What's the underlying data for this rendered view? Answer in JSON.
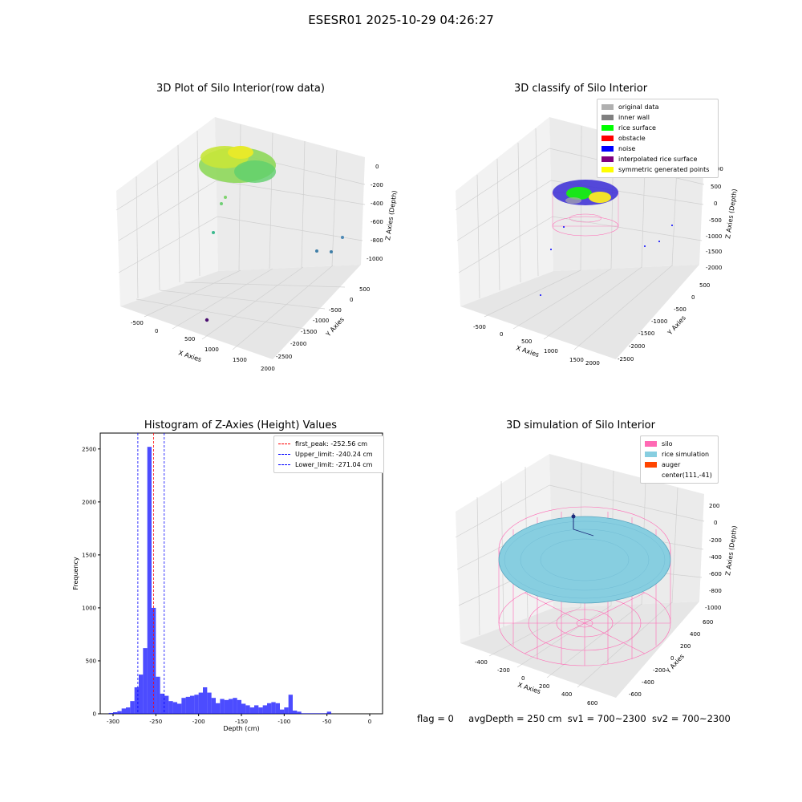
{
  "suptitle": "ESESR01 2025-10-29 04:26:27",
  "panels": {
    "raw": {
      "title": "3D Plot of Silo Interior(row data)",
      "xlabel": "X Axies",
      "ylabel": "Y Axies",
      "zlabel": "Z Axies (Depth)",
      "xticks": [
        "-500",
        "0",
        "500",
        "1000",
        "1500",
        "2000"
      ],
      "yticks": [
        "500",
        "0",
        "-500",
        "-1000",
        "-1500",
        "-2000",
        "-2500"
      ],
      "zticks": [
        "0",
        "-200",
        "-400",
        "-600",
        "-800",
        "-1000"
      ]
    },
    "classify": {
      "title": "3D classify of Silo Interior",
      "xlabel": "X Axies",
      "ylabel": "Y Axies",
      "zlabel": "Z Axies (Depth)",
      "xticks": [
        "-500",
        "0",
        "500",
        "1000",
        "1500",
        "2000"
      ],
      "yticks": [
        "500",
        "0",
        "-500",
        "-1000",
        "-1500",
        "-2000",
        "-2500"
      ],
      "zticks": [
        "1000",
        "500",
        "0",
        "-500",
        "-1000",
        "-1500",
        "-2000"
      ],
      "legend": [
        {
          "label": "original data",
          "color": "#b0b0b0"
        },
        {
          "label": "inner wall",
          "color": "#808080"
        },
        {
          "label": "rice surface",
          "color": "#00ff00"
        },
        {
          "label": "obstacle",
          "color": "#ff0000"
        },
        {
          "label": "noise",
          "color": "#0000ff"
        },
        {
          "label": "interpolated rice surface",
          "color": "#800080"
        },
        {
          "label": "symmetric generated points",
          "color": "#ffff00"
        }
      ]
    },
    "histogram": {
      "title": "Histogram of Z-Axies (Height) Values",
      "legend": [
        {
          "label": "first_peak: -252.56 cm",
          "color": "#ff0000"
        },
        {
          "label": "Upper_limit: -240.24 cm",
          "color": "#0000ff"
        },
        {
          "label": "Lower_limit: -271.04 cm",
          "color": "#0000ff"
        }
      ]
    },
    "simulation": {
      "title": "3D simulation of Silo Interior",
      "xlabel": "X Axies",
      "ylabel": "Y Axies",
      "zlabel": "Z Axies (Depth)",
      "xticks": [
        "-400",
        "-200",
        "0",
        "200",
        "400",
        "600"
      ],
      "yticks": [
        "600",
        "400",
        "200",
        "0",
        "-200",
        "-400",
        "-600"
      ],
      "zticks": [
        "200",
        "0",
        "-200",
        "-400",
        "-600",
        "-800",
        "-1000"
      ],
      "legend": [
        {
          "label": "silo",
          "color": "#ff69b4"
        },
        {
          "label": "rice simulation",
          "color": "#87cee0"
        },
        {
          "label": "auger",
          "color": "#ff4500"
        },
        {
          "label": "center(111,-41)",
          "color": ""
        }
      ]
    }
  },
  "status": {
    "flag": "flag = 0",
    "avg_depth": "avgDepth = 250 cm",
    "sv1": "sv1 = 700~2300",
    "sv2": "sv2 = 700~2300"
  },
  "chart_data": [
    {
      "type": "scatter",
      "title": "3D Plot of Silo Interior(row data)",
      "projection": "3d",
      "xlabel": "X Axies",
      "ylabel": "Y Axies",
      "zlabel": "Z Axies (Depth)",
      "xlim": [
        -700,
        2000
      ],
      "ylim": [
        -2700,
        700
      ],
      "zlim": [
        -1100,
        50
      ]
    },
    {
      "type": "scatter",
      "title": "3D classify of Silo Interior",
      "projection": "3d",
      "xlabel": "X Axies",
      "ylabel": "Y Axies",
      "zlabel": "Z Axies (Depth)",
      "xlim": [
        -700,
        2000
      ],
      "ylim": [
        -2700,
        700
      ],
      "zlim": [
        -2100,
        1100
      ],
      "legend_position": "top-right"
    },
    {
      "type": "bar",
      "title": "Histogram of Z-Axies (Height) Values",
      "xlabel": "Depth (cm)",
      "ylabel": "Frequency",
      "xlim": [
        -315,
        15
      ],
      "ylim": [
        0,
        2650
      ],
      "xticks": [
        -300,
        -250,
        -200,
        -150,
        -100,
        -50,
        0
      ],
      "yticks": [
        0,
        500,
        1000,
        1500,
        2000,
        2500
      ],
      "bin_width": 5,
      "bins": [
        [
          -305,
          8
        ],
        [
          -300,
          15
        ],
        [
          -295,
          25
        ],
        [
          -290,
          50
        ],
        [
          -285,
          60
        ],
        [
          -280,
          120
        ],
        [
          -275,
          250
        ],
        [
          -270,
          370
        ],
        [
          -265,
          620
        ],
        [
          -260,
          2520
        ],
        [
          -255,
          1000
        ],
        [
          -250,
          350
        ],
        [
          -245,
          190
        ],
        [
          -240,
          170
        ],
        [
          -235,
          120
        ],
        [
          -230,
          110
        ],
        [
          -225,
          95
        ],
        [
          -220,
          150
        ],
        [
          -215,
          160
        ],
        [
          -210,
          170
        ],
        [
          -205,
          180
        ],
        [
          -200,
          200
        ],
        [
          -195,
          250
        ],
        [
          -190,
          200
        ],
        [
          -185,
          150
        ],
        [
          -180,
          100
        ],
        [
          -175,
          140
        ],
        [
          -170,
          130
        ],
        [
          -165,
          140
        ],
        [
          -160,
          150
        ],
        [
          -155,
          130
        ],
        [
          -150,
          95
        ],
        [
          -145,
          80
        ],
        [
          -140,
          60
        ],
        [
          -135,
          80
        ],
        [
          -130,
          60
        ],
        [
          -125,
          80
        ],
        [
          -120,
          100
        ],
        [
          -115,
          110
        ],
        [
          -110,
          100
        ],
        [
          -105,
          40
        ],
        [
          -100,
          60
        ],
        [
          -95,
          180
        ],
        [
          -90,
          30
        ],
        [
          -85,
          20
        ],
        [
          -80,
          5
        ],
        [
          -75,
          5
        ],
        [
          -70,
          5
        ],
        [
          -65,
          5
        ],
        [
          -60,
          5
        ],
        [
          -55,
          5
        ],
        [
          -50,
          20
        ]
      ],
      "vlines": [
        {
          "label": "first_peak: -252.56 cm",
          "x": -252.56,
          "color": "#ff0000"
        },
        {
          "label": "Upper_limit: -240.24 cm",
          "x": -240.24,
          "color": "#0000ff"
        },
        {
          "label": "Lower_limit: -271.04 cm",
          "x": -271.04,
          "color": "#0000ff"
        }
      ],
      "bar_color": "#0000ff",
      "legend_position": "top-right"
    },
    {
      "type": "scatter",
      "title": "3D simulation of Silo Interior",
      "projection": "3d",
      "xlabel": "X Axies",
      "ylabel": "Y Axies",
      "zlabel": "Z Axies (Depth)",
      "xlim": [
        -500,
        700
      ],
      "ylim": [
        -700,
        700
      ],
      "zlim": [
        -1100,
        300
      ],
      "legend_position": "top-right"
    }
  ]
}
